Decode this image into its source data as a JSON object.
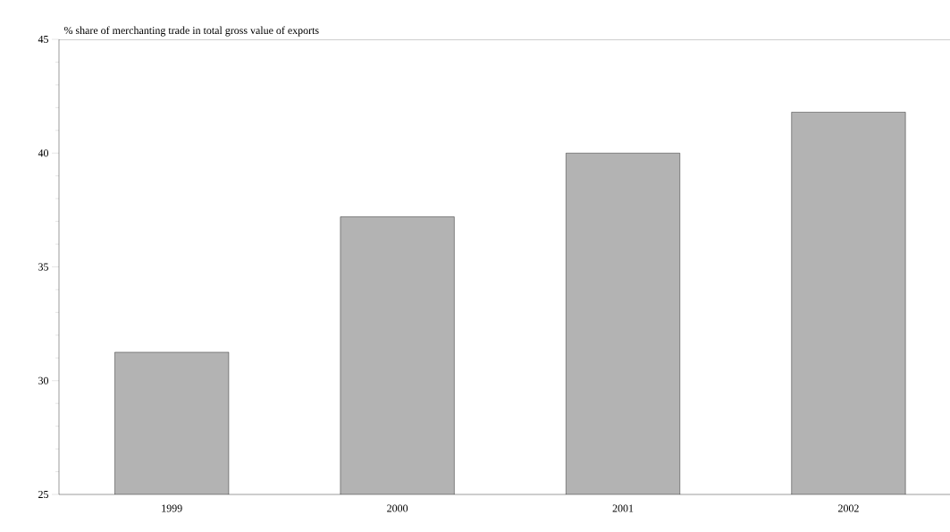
{
  "chart_data": {
    "type": "bar",
    "ylabel": "% share of merchanting trade in total gross value of exports",
    "categories": [
      "1999",
      "2000",
      "2001",
      "2002"
    ],
    "values": [
      31.25,
      37.2,
      40.0,
      41.8
    ],
    "color": "#b3b3b3",
    "ylim": [
      25,
      45
    ],
    "yticks": [
      25,
      30,
      35,
      40,
      45
    ],
    "grid": false
  }
}
